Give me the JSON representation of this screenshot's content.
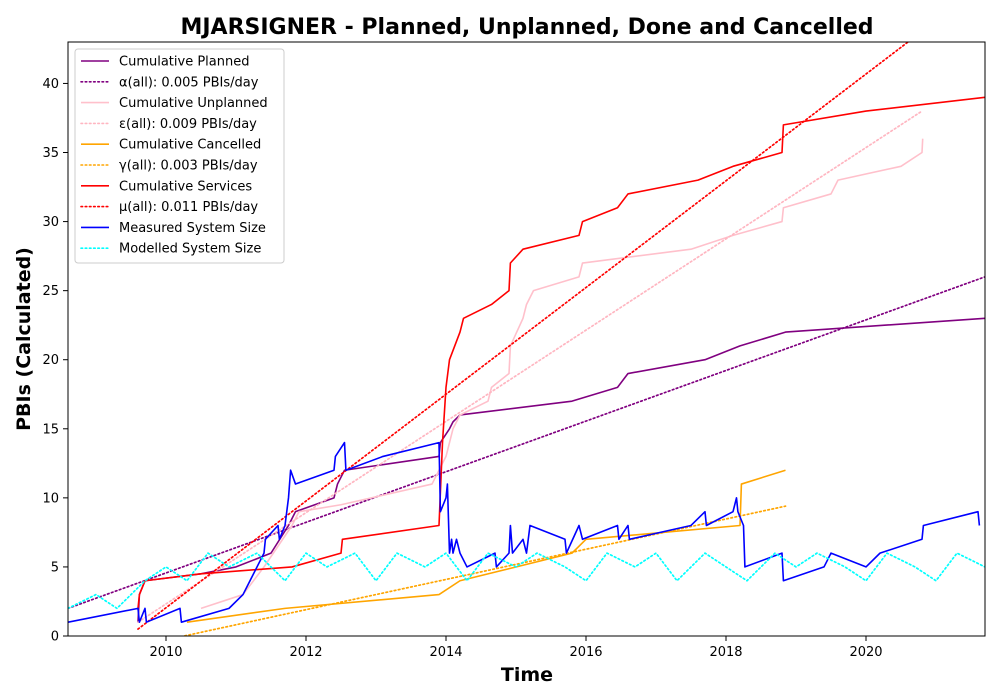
{
  "chart_data": {
    "type": "line",
    "title": "MJARSIGNER - Planned, Unplanned, Done  and Cancelled",
    "xlabel": "Time",
    "ylabel": "PBIs (Calculated)",
    "xlim": [
      2008.6,
      2021.7
    ],
    "ylim": [
      0,
      43
    ],
    "x_ticks": [
      "2010",
      "2012",
      "2014",
      "2016",
      "2018",
      "2020"
    ],
    "x_tick_values": [
      2010,
      2012,
      2014,
      2016,
      2018,
      2020
    ],
    "y_ticks": [
      "0",
      "5",
      "10",
      "15",
      "20",
      "25",
      "30",
      "35",
      "40"
    ],
    "y_tick_values": [
      0,
      5,
      10,
      15,
      20,
      25,
      30,
      35,
      40
    ],
    "grid": false,
    "legend_position": "upper left",
    "series": [
      {
        "name": "Cumulative Planned",
        "color": "#800080",
        "style": "solid",
        "points": [
          [
            2009.6,
            1
          ],
          [
            2009.62,
            3
          ],
          [
            2009.7,
            4
          ],
          [
            2010.5,
            4.5
          ],
          [
            2011.0,
            5
          ],
          [
            2011.5,
            6
          ],
          [
            2011.75,
            8
          ],
          [
            2011.85,
            9
          ],
          [
            2012.4,
            10
          ],
          [
            2012.45,
            11
          ],
          [
            2012.55,
            12
          ],
          [
            2013.9,
            13
          ],
          [
            2013.92,
            14
          ],
          [
            2014.05,
            15
          ],
          [
            2014.1,
            15.5
          ],
          [
            2014.2,
            16
          ],
          [
            2015.8,
            17
          ],
          [
            2016.45,
            18
          ],
          [
            2016.6,
            19
          ],
          [
            2017.7,
            20
          ],
          [
            2018.2,
            21
          ],
          [
            2018.85,
            22
          ],
          [
            2021.7,
            23
          ]
        ]
      },
      {
        "name": "α(all): 0.005 PBIs/day",
        "color": "#800080",
        "style": "dotted",
        "points": [
          [
            2008.6,
            2
          ],
          [
            2021.7,
            26
          ]
        ]
      },
      {
        "name": "Cumulative Unplanned",
        "color": "#ffc0cb",
        "style": "solid",
        "points": [
          [
            2010.5,
            2
          ],
          [
            2011.1,
            3
          ],
          [
            2011.4,
            5
          ],
          [
            2011.8,
            8
          ],
          [
            2011.9,
            9
          ],
          [
            2012.5,
            9.5
          ],
          [
            2013.8,
            11
          ],
          [
            2014.0,
            13
          ],
          [
            2014.1,
            15
          ],
          [
            2014.2,
            16
          ],
          [
            2014.6,
            17
          ],
          [
            2014.65,
            18
          ],
          [
            2014.9,
            19
          ],
          [
            2014.92,
            21
          ],
          [
            2015.1,
            23
          ],
          [
            2015.15,
            24
          ],
          [
            2015.25,
            25
          ],
          [
            2015.9,
            26
          ],
          [
            2015.95,
            27
          ],
          [
            2017.5,
            28
          ],
          [
            2018.1,
            29
          ],
          [
            2018.8,
            30
          ],
          [
            2018.82,
            31
          ],
          [
            2019.5,
            32
          ],
          [
            2019.6,
            33
          ],
          [
            2020.5,
            34
          ],
          [
            2020.8,
            35
          ],
          [
            2020.81,
            36
          ]
        ]
      },
      {
        "name": "ε(all): 0.009 PBIs/day",
        "color": "#ffb6c1",
        "style": "dotted",
        "points": [
          [
            2009.6,
            1
          ],
          [
            2020.8,
            38
          ]
        ]
      },
      {
        "name": "Cumulative Cancelled",
        "color": "#ffa500",
        "style": "solid",
        "points": [
          [
            2010.3,
            1
          ],
          [
            2011.7,
            2
          ],
          [
            2013.9,
            3
          ],
          [
            2014.2,
            4
          ],
          [
            2015.8,
            6
          ],
          [
            2016.0,
            7
          ],
          [
            2018.2,
            8
          ],
          [
            2018.22,
            11
          ],
          [
            2018.85,
            12
          ]
        ]
      },
      {
        "name": "γ(all): 0.003 PBIs/day",
        "color": "#ffa500",
        "style": "dotted",
        "points": [
          [
            2009.8,
            -0.5
          ],
          [
            2018.85,
            9.4
          ]
        ]
      },
      {
        "name": "Cumulative Services",
        "color": "#ff0000",
        "style": "solid",
        "points": [
          [
            2009.6,
            2
          ],
          [
            2009.62,
            3
          ],
          [
            2009.7,
            4
          ],
          [
            2010.5,
            4.5
          ],
          [
            2011.8,
            5
          ],
          [
            2012.5,
            6
          ],
          [
            2012.52,
            7
          ],
          [
            2013.9,
            8
          ],
          [
            2013.95,
            14
          ],
          [
            2014.0,
            18
          ],
          [
            2014.05,
            20
          ],
          [
            2014.2,
            22
          ],
          [
            2014.25,
            23
          ],
          [
            2014.65,
            24
          ],
          [
            2014.9,
            25
          ],
          [
            2014.92,
            27
          ],
          [
            2015.1,
            28
          ],
          [
            2015.9,
            29
          ],
          [
            2015.95,
            30
          ],
          [
            2016.45,
            31
          ],
          [
            2016.6,
            32
          ],
          [
            2017.6,
            33
          ],
          [
            2018.1,
            34
          ],
          [
            2018.8,
            35
          ],
          [
            2018.82,
            37
          ],
          [
            2020.0,
            38
          ],
          [
            2021.7,
            39
          ]
        ]
      },
      {
        "name": "μ(all): 0.011 PBIs/day",
        "color": "#ff0000",
        "style": "dotted",
        "points": [
          [
            2009.6,
            0.5
          ],
          [
            2020.6,
            43
          ]
        ]
      },
      {
        "name": "Measured System Size",
        "color": "#0000ff",
        "style": "solid",
        "points": [
          [
            2008.6,
            1
          ],
          [
            2009.6,
            2
          ],
          [
            2009.62,
            1
          ],
          [
            2009.7,
            2
          ],
          [
            2009.72,
            1
          ],
          [
            2010.2,
            2
          ],
          [
            2010.22,
            1
          ],
          [
            2010.9,
            2
          ],
          [
            2011.1,
            3
          ],
          [
            2011.2,
            4
          ],
          [
            2011.4,
            6
          ],
          [
            2011.42,
            7
          ],
          [
            2011.6,
            8
          ],
          [
            2011.62,
            7
          ],
          [
            2011.7,
            8
          ],
          [
            2011.75,
            10
          ],
          [
            2011.78,
            12
          ],
          [
            2011.85,
            11
          ],
          [
            2012.4,
            12
          ],
          [
            2012.42,
            13
          ],
          [
            2012.55,
            14
          ],
          [
            2012.57,
            12
          ],
          [
            2013.1,
            13
          ],
          [
            2013.9,
            14
          ],
          [
            2013.92,
            9
          ],
          [
            2014.0,
            10
          ],
          [
            2014.02,
            11
          ],
          [
            2014.05,
            6
          ],
          [
            2014.08,
            7
          ],
          [
            2014.1,
            6
          ],
          [
            2014.15,
            7
          ],
          [
            2014.2,
            6
          ],
          [
            2014.3,
            5
          ],
          [
            2014.7,
            6
          ],
          [
            2014.72,
            5
          ],
          [
            2014.9,
            6
          ],
          [
            2014.92,
            8
          ],
          [
            2014.95,
            6
          ],
          [
            2015.1,
            7
          ],
          [
            2015.15,
            6
          ],
          [
            2015.2,
            8
          ],
          [
            2015.7,
            7
          ],
          [
            2015.72,
            6
          ],
          [
            2015.9,
            8
          ],
          [
            2015.95,
            7
          ],
          [
            2016.45,
            8
          ],
          [
            2016.47,
            7
          ],
          [
            2016.6,
            8
          ],
          [
            2016.62,
            7
          ],
          [
            2017.5,
            8
          ],
          [
            2017.7,
            9
          ],
          [
            2017.72,
            8
          ],
          [
            2018.1,
            9
          ],
          [
            2018.15,
            10
          ],
          [
            2018.17,
            9
          ],
          [
            2018.25,
            8
          ],
          [
            2018.27,
            5
          ],
          [
            2018.8,
            6
          ],
          [
            2018.82,
            4
          ],
          [
            2019.4,
            5
          ],
          [
            2019.5,
            6
          ],
          [
            2020.0,
            5
          ],
          [
            2020.2,
            6
          ],
          [
            2020.8,
            7
          ],
          [
            2020.82,
            8
          ],
          [
            2021.6,
            9
          ],
          [
            2021.62,
            8
          ]
        ]
      },
      {
        "name": "Modelled System Size",
        "color": "#00ffff",
        "style": "dotted",
        "points": [
          [
            2008.6,
            2
          ],
          [
            2009.0,
            3
          ],
          [
            2009.3,
            2
          ],
          [
            2009.7,
            4
          ],
          [
            2010.0,
            5
          ],
          [
            2010.3,
            4
          ],
          [
            2010.6,
            6
          ],
          [
            2010.9,
            5
          ],
          [
            2011.3,
            6
          ],
          [
            2011.7,
            4
          ],
          [
            2012.0,
            6
          ],
          [
            2012.3,
            5
          ],
          [
            2012.7,
            6
          ],
          [
            2013.0,
            4
          ],
          [
            2013.3,
            6
          ],
          [
            2013.7,
            5
          ],
          [
            2014.0,
            6
          ],
          [
            2014.3,
            4
          ],
          [
            2014.6,
            6
          ],
          [
            2015.0,
            5
          ],
          [
            2015.3,
            6
          ],
          [
            2015.7,
            5
          ],
          [
            2016.0,
            4
          ],
          [
            2016.3,
            6
          ],
          [
            2016.7,
            5
          ],
          [
            2017.0,
            6
          ],
          [
            2017.3,
            4
          ],
          [
            2017.7,
            6
          ],
          [
            2018.0,
            5
          ],
          [
            2018.3,
            4
          ],
          [
            2018.7,
            6
          ],
          [
            2019.0,
            5
          ],
          [
            2019.3,
            6
          ],
          [
            2019.7,
            5
          ],
          [
            2020.0,
            4
          ],
          [
            2020.3,
            6
          ],
          [
            2020.7,
            5
          ],
          [
            2021.0,
            4
          ],
          [
            2021.3,
            6
          ],
          [
            2021.7,
            5
          ]
        ]
      }
    ]
  }
}
